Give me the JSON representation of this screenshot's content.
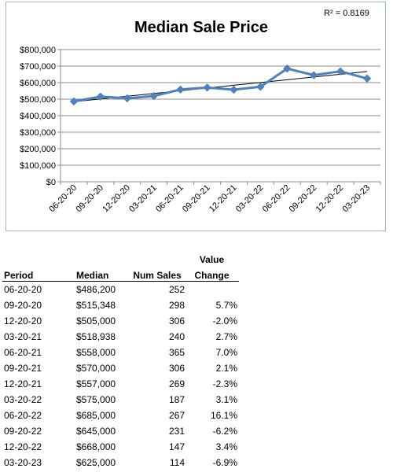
{
  "chart_data": {
    "type": "line",
    "title": "Median Sale Price",
    "annotation": "R² = 0.8169",
    "categories": [
      "06-20-20",
      "09-20-20",
      "12-20-20",
      "03-20-21",
      "06-20-21",
      "09-20-21",
      "12-20-21",
      "03-20-22",
      "06-20-22",
      "09-20-22",
      "12-20-22",
      "03-20-23"
    ],
    "series": [
      {
        "values": [
          486200,
          515348,
          505000,
          518938,
          558000,
          570000,
          557000,
          575000,
          685000,
          645000,
          668000,
          625000
        ],
        "color": "#4f81bd"
      }
    ],
    "trendline": {
      "type": "linear",
      "color": "#000000"
    },
    "ylim": [
      0,
      800000
    ],
    "yticks": [
      0,
      100000,
      200000,
      300000,
      400000,
      500000,
      600000,
      700000,
      800000
    ],
    "ytick_labels": [
      "$0",
      "$100,000",
      "$200,000",
      "$300,000",
      "$400,000",
      "$500,000",
      "$600,000",
      "$700,000",
      "$800,000"
    ],
    "grid": true,
    "legend": "none"
  },
  "table": {
    "header_top": {
      "change": "Value"
    },
    "headers": {
      "period": "Period",
      "median": "Median",
      "num_sales": "Num Sales",
      "change": "Change"
    },
    "rows": [
      {
        "period": "06-20-20",
        "median": "$486,200",
        "num_sales": "252",
        "change": ""
      },
      {
        "period": "09-20-20",
        "median": "$515,348",
        "num_sales": "298",
        "change": "5.7%"
      },
      {
        "period": "12-20-20",
        "median": "$505,000",
        "num_sales": "306",
        "change": "-2.0%"
      },
      {
        "period": "03-20-21",
        "median": "$518,938",
        "num_sales": "240",
        "change": "2.7%"
      },
      {
        "period": "06-20-21",
        "median": "$558,000",
        "num_sales": "365",
        "change": "7.0%"
      },
      {
        "period": "09-20-21",
        "median": "$570,000",
        "num_sales": "306",
        "change": "2.1%"
      },
      {
        "period": "12-20-21",
        "median": "$557,000",
        "num_sales": "269",
        "change": "-2.3%"
      },
      {
        "period": "03-20-22",
        "median": "$575,000",
        "num_sales": "187",
        "change": "3.1%"
      },
      {
        "period": "06-20-22",
        "median": "$685,000",
        "num_sales": "267",
        "change": "16.1%"
      },
      {
        "period": "09-20-22",
        "median": "$645,000",
        "num_sales": "231",
        "change": "-6.2%"
      },
      {
        "period": "12-20-22",
        "median": "$668,000",
        "num_sales": "147",
        "change": "3.4%"
      },
      {
        "period": "03-20-23",
        "median": "$625,000",
        "num_sales": "114",
        "change": "-6.9%"
      }
    ]
  }
}
